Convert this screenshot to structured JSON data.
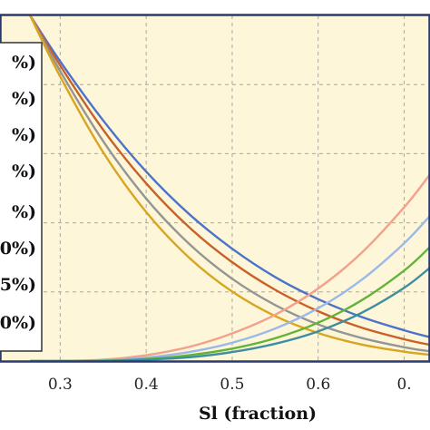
{
  "chart_data": {
    "type": "line",
    "xlabel": "Sl (fraction)",
    "ylabel": "",
    "x_tick_labels": [
      "0.3",
      "0.4",
      "0.5",
      "0.6",
      "0."
    ],
    "xlim": [
      0.23,
      0.73
    ],
    "ylim": [
      0,
      1
    ],
    "grid": true,
    "legend_position": "left",
    "legend_entries": [
      "%)",
      "%)",
      "%)",
      "%)",
      "%)",
      "0%)",
      "5%)",
      "0%)"
    ],
    "colors": {
      "plot_background": "#fdf6d8",
      "frame": "#2a3a6e",
      "grid": "#a8a8a8",
      "blue": "#4d72c9",
      "orange_red": "#c9602a",
      "gray": "#959595",
      "gold": "#d9a520",
      "salmon": "#f3a08c",
      "light_blue": "#9ab8ea",
      "green": "#63b33a",
      "teal": "#3d8e9e"
    },
    "series": [
      {
        "color": "#4d72c9",
        "kind": "decreasing",
        "x": [
          0.265,
          0.3,
          0.35,
          0.4,
          0.45,
          0.5,
          0.55,
          0.6,
          0.65,
          0.7,
          0.73
        ],
        "y": [
          1.0,
          0.867,
          0.696,
          0.548,
          0.425,
          0.325,
          0.243,
          0.179,
          0.128,
          0.089,
          0.069
        ]
      },
      {
        "color": "#c9602a",
        "kind": "decreasing",
        "x": [
          0.265,
          0.3,
          0.35,
          0.4,
          0.45,
          0.5,
          0.55,
          0.6,
          0.65,
          0.7,
          0.73
        ],
        "y": [
          1.0,
          0.855,
          0.669,
          0.514,
          0.387,
          0.286,
          0.206,
          0.144,
          0.097,
          0.063,
          0.047
        ]
      },
      {
        "color": "#959595",
        "kind": "decreasing",
        "x": [
          0.265,
          0.3,
          0.35,
          0.4,
          0.45,
          0.5,
          0.55,
          0.6,
          0.65,
          0.7,
          0.73
        ],
        "y": [
          1.0,
          0.839,
          0.636,
          0.47,
          0.339,
          0.238,
          0.162,
          0.106,
          0.067,
          0.04,
          0.028
        ]
      },
      {
        "color": "#d9a520",
        "kind": "decreasing",
        "x": [
          0.265,
          0.3,
          0.35,
          0.4,
          0.45,
          0.5,
          0.55,
          0.6,
          0.65,
          0.7,
          0.73
        ],
        "y": [
          1.0,
          0.823,
          0.604,
          0.431,
          0.299,
          0.201,
          0.13,
          0.081,
          0.048,
          0.027,
          0.018
        ]
      },
      {
        "color": "#f3a08c",
        "kind": "increasing",
        "x": [
          0.265,
          0.3,
          0.35,
          0.4,
          0.45,
          0.5,
          0.55,
          0.6,
          0.65,
          0.7,
          0.73
        ],
        "y": [
          0.0,
          0.0,
          0.004,
          0.017,
          0.041,
          0.08,
          0.134,
          0.21,
          0.312,
          0.445,
          0.54
        ]
      },
      {
        "color": "#9ab8ea",
        "kind": "increasing",
        "x": [
          0.265,
          0.3,
          0.35,
          0.4,
          0.45,
          0.5,
          0.55,
          0.6,
          0.65,
          0.7,
          0.73
        ],
        "y": [
          0.0,
          0.0,
          0.002,
          0.01,
          0.026,
          0.053,
          0.094,
          0.153,
          0.234,
          0.341,
          0.42
        ]
      },
      {
        "color": "#63b33a",
        "kind": "increasing",
        "x": [
          0.265,
          0.3,
          0.35,
          0.4,
          0.45,
          0.5,
          0.55,
          0.6,
          0.65,
          0.7,
          0.73
        ],
        "y": [
          0.0,
          0.0,
          0.001,
          0.006,
          0.017,
          0.036,
          0.066,
          0.111,
          0.175,
          0.262,
          0.33
        ]
      },
      {
        "color": "#3d8e9e",
        "kind": "increasing",
        "x": [
          0.265,
          0.3,
          0.35,
          0.4,
          0.45,
          0.5,
          0.55,
          0.6,
          0.65,
          0.7,
          0.73
        ],
        "y": [
          0.0,
          0.0,
          0.0,
          0.004,
          0.011,
          0.026,
          0.05,
          0.086,
          0.139,
          0.212,
          0.27
        ]
      }
    ]
  }
}
